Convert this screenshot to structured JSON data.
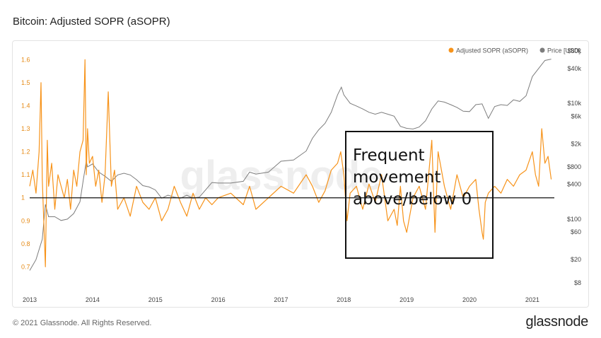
{
  "header": {
    "title": "Bitcoin: Adjusted SOPR (aSOPR)"
  },
  "footer": {
    "copyright": "© 2021 Glassnode. All Rights Reserved.",
    "brand": "glassnode"
  },
  "watermark": "glassnode",
  "annotation": {
    "lines": [
      "Frequent",
      "movement",
      "above/below 0"
    ]
  },
  "colors": {
    "asopr": "#F7931A",
    "price": "#7d7d7d",
    "baseline": "#111111",
    "left_axis_text": "#e58a16",
    "right_axis_text": "#444444"
  },
  "chart_data": {
    "type": "line",
    "x_range": [
      2013.0,
      2021.35
    ],
    "x_ticks": [
      "2013",
      "2014",
      "2015",
      "2016",
      "2017",
      "2018",
      "2019",
      "2020",
      "2021"
    ],
    "left_axis": {
      "range": [
        0.6,
        1.65
      ],
      "ticks": [
        "0.7",
        "0.8",
        "0.9",
        "1",
        "1.1",
        "1.2",
        "1.3",
        "1.4",
        "1.5",
        "1.6"
      ]
    },
    "right_axis": {
      "scale": "log",
      "range": [
        6,
        90000
      ],
      "ticks": [
        "$8",
        "$20",
        "$60",
        "$100",
        "$400",
        "$800",
        "$2k",
        "$6k",
        "$10k",
        "$40k",
        "$80k"
      ]
    },
    "reference_line": 1,
    "legend_position": "top-right",
    "series": [
      {
        "name": "Adjusted SOPR (aSOPR)",
        "axis": "left",
        "x": [
          2013.0,
          2013.05,
          2013.1,
          2013.15,
          2013.18,
          2013.2,
          2013.25,
          2013.28,
          2013.3,
          2013.35,
          2013.4,
          2013.45,
          2013.5,
          2013.55,
          2013.6,
          2013.65,
          2013.7,
          2013.75,
          2013.8,
          2013.85,
          2013.88,
          2013.9,
          2013.92,
          2013.95,
          2014.0,
          2014.05,
          2014.1,
          2014.15,
          2014.2,
          2014.25,
          2014.3,
          2014.35,
          2014.4,
          2014.5,
          2014.6,
          2014.7,
          2014.8,
          2014.9,
          2015.0,
          2015.1,
          2015.2,
          2015.3,
          2015.4,
          2015.5,
          2015.6,
          2015.7,
          2015.8,
          2015.9,
          2016.0,
          2016.2,
          2016.4,
          2016.5,
          2016.6,
          2016.8,
          2017.0,
          2017.2,
          2017.4,
          2017.5,
          2017.6,
          2017.7,
          2017.8,
          2017.9,
          2017.95,
          2018.0,
          2018.05,
          2018.1,
          2018.2,
          2018.3,
          2018.4,
          2018.5,
          2018.6,
          2018.7,
          2018.8,
          2018.85,
          2018.9,
          2018.95,
          2019.0,
          2019.1,
          2019.2,
          2019.3,
          2019.4,
          2019.45,
          2019.5,
          2019.6,
          2019.7,
          2019.8,
          2019.9,
          2020.0,
          2020.1,
          2020.15,
          2020.2,
          2020.22,
          2020.25,
          2020.3,
          2020.4,
          2020.5,
          2020.6,
          2020.7,
          2020.8,
          2020.9,
          2021.0,
          2021.05,
          2021.1,
          2021.15,
          2021.2,
          2021.25,
          2021.3
        ],
        "y": [
          1.05,
          1.12,
          1.02,
          1.2,
          1.5,
          1.08,
          0.7,
          1.25,
          1.05,
          1.15,
          0.95,
          1.1,
          1.05,
          1.0,
          1.08,
          0.95,
          1.12,
          1.05,
          1.2,
          1.25,
          1.6,
          1.1,
          1.3,
          1.15,
          1.18,
          1.05,
          1.12,
          0.98,
          1.1,
          1.46,
          1.05,
          1.12,
          0.95,
          1.0,
          0.92,
          1.05,
          0.98,
          0.95,
          1.0,
          0.9,
          0.95,
          1.05,
          0.98,
          0.92,
          1.02,
          0.95,
          1.0,
          0.97,
          1.0,
          1.02,
          0.97,
          1.05,
          0.95,
          1.0,
          1.05,
          1.02,
          1.1,
          1.05,
          0.98,
          1.03,
          1.12,
          1.15,
          1.2,
          1.1,
          0.9,
          1.02,
          1.05,
          0.95,
          1.06,
          0.98,
          1.1,
          0.9,
          0.95,
          0.88,
          1.05,
          0.9,
          0.85,
          1.0,
          1.05,
          0.95,
          1.25,
          0.85,
          1.2,
          1.05,
          0.95,
          1.1,
          1.0,
          1.05,
          1.08,
          0.95,
          0.85,
          0.82,
          0.98,
          1.02,
          1.05,
          1.02,
          1.08,
          1.05,
          1.1,
          1.12,
          1.2,
          1.1,
          1.05,
          1.3,
          1.15,
          1.18,
          1.08
        ]
      },
      {
        "name": "Price [USD]",
        "axis": "right",
        "x": [
          2013.0,
          2013.1,
          2013.2,
          2013.25,
          2013.3,
          2013.4,
          2013.5,
          2013.6,
          2013.7,
          2013.8,
          2013.85,
          2013.9,
          2013.92,
          2014.0,
          2014.1,
          2014.2,
          2014.3,
          2014.4,
          2014.5,
          2014.6,
          2014.7,
          2014.8,
          2014.9,
          2015.0,
          2015.1,
          2015.2,
          2015.3,
          2015.4,
          2015.5,
          2015.6,
          2015.7,
          2015.8,
          2015.9,
          2016.0,
          2016.2,
          2016.4,
          2016.5,
          2016.6,
          2016.8,
          2017.0,
          2017.2,
          2017.4,
          2017.5,
          2017.6,
          2017.7,
          2017.8,
          2017.9,
          2017.96,
          2018.0,
          2018.1,
          2018.2,
          2018.3,
          2018.4,
          2018.5,
          2018.6,
          2018.7,
          2018.8,
          2018.9,
          2019.0,
          2019.1,
          2019.2,
          2019.3,
          2019.4,
          2019.5,
          2019.6,
          2019.7,
          2019.8,
          2019.9,
          2020.0,
          2020.1,
          2020.2,
          2020.3,
          2020.4,
          2020.5,
          2020.6,
          2020.7,
          2020.8,
          2020.9,
          2021.0,
          2021.1,
          2021.2,
          2021.3
        ],
        "y": [
          13,
          20,
          45,
          180,
          110,
          110,
          95,
          100,
          125,
          200,
          450,
          1000,
          800,
          900,
          650,
          550,
          450,
          580,
          620,
          580,
          480,
          380,
          360,
          320,
          230,
          260,
          240,
          230,
          260,
          230,
          240,
          320,
          430,
          420,
          420,
          450,
          650,
          600,
          650,
          1000,
          1050,
          1500,
          2500,
          3500,
          4500,
          7000,
          14000,
          19000,
          14000,
          10000,
          9000,
          8000,
          7000,
          6500,
          7000,
          6500,
          6000,
          4000,
          3700,
          3600,
          3900,
          5000,
          8000,
          11000,
          10500,
          9500,
          8500,
          7300,
          7200,
          9500,
          9800,
          5500,
          8800,
          9500,
          9200,
          11500,
          10800,
          13500,
          29000,
          40000,
          55000,
          58000
        ]
      }
    ]
  }
}
